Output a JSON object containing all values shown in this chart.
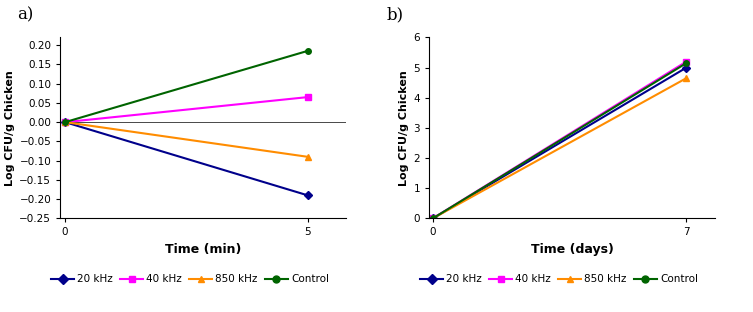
{
  "plot_a": {
    "label": "a)",
    "xlabel": "Time (min)",
    "ylabel": "Log CFU/g Chicken",
    "xlim": [
      -0.1,
      5.8
    ],
    "ylim": [
      -0.25,
      0.22
    ],
    "yticks": [
      -0.25,
      -0.2,
      -0.15,
      -0.1,
      -0.05,
      0,
      0.05,
      0.1,
      0.15,
      0.2
    ],
    "xticks": [
      0,
      5
    ],
    "series": [
      {
        "label": "20 kHz",
        "color": "#00008B",
        "marker": "D",
        "x": [
          0,
          5
        ],
        "y": [
          0.0,
          -0.19
        ]
      },
      {
        "label": "40 kHz",
        "color": "#FF00FF",
        "marker": "s",
        "x": [
          0,
          5
        ],
        "y": [
          0.0,
          0.065
        ]
      },
      {
        "label": "850 kHz",
        "color": "#FF8C00",
        "marker": "^",
        "x": [
          0,
          5
        ],
        "y": [
          0.0,
          -0.09
        ]
      },
      {
        "label": "Control",
        "color": "#006400",
        "marker": "o",
        "x": [
          0,
          5
        ],
        "y": [
          0.0,
          0.185
        ]
      }
    ]
  },
  "plot_b": {
    "label": "b)",
    "xlabel": "Time (days)",
    "ylabel": "Log CFU/g Chicken",
    "xlim": [
      -0.1,
      7.8
    ],
    "ylim": [
      0,
      6
    ],
    "yticks": [
      0,
      1,
      2,
      3,
      4,
      5,
      6
    ],
    "xticks": [
      0,
      7
    ],
    "series": [
      {
        "label": "20 kHz",
        "color": "#00008B",
        "marker": "D",
        "x": [
          0,
          7
        ],
        "y": [
          0.0,
          5.0
        ]
      },
      {
        "label": "40 kHz",
        "color": "#FF00FF",
        "marker": "s",
        "x": [
          0,
          7
        ],
        "y": [
          0.0,
          5.2
        ]
      },
      {
        "label": "850 kHz",
        "color": "#FF8C00",
        "marker": "^",
        "x": [
          0,
          7
        ],
        "y": [
          0.0,
          4.65
        ]
      },
      {
        "label": "Control",
        "color": "#006400",
        "marker": "o",
        "x": [
          0,
          7
        ],
        "y": [
          0.0,
          5.15
        ]
      }
    ]
  },
  "legend_labels": [
    "20 kHz",
    "40 kHz",
    "850 kHz",
    "Control"
  ],
  "legend_colors": [
    "#00008B",
    "#FF00FF",
    "#FF8C00",
    "#006400"
  ],
  "legend_markers": [
    "D",
    "s",
    "^",
    "o"
  ],
  "figsize": [
    7.53,
    3.12
  ],
  "dpi": 100
}
